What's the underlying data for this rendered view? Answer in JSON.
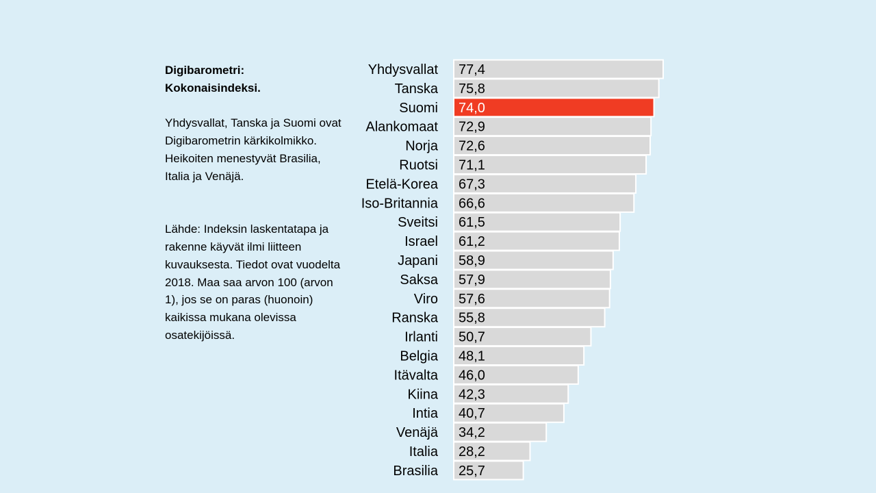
{
  "sidebar": {
    "title_line1": "Digibarometri:",
    "title_line2": "Kokonaisindeksi.",
    "summary": "Yhdysvallat, Tanska ja Suomi ovat Digibarometrin kärkikolmikko. Heikoiten menestyvät Brasilia, Italia ja Venäjä.",
    "source": "Lähde: Indeksin laskentatapa ja rakenne käyvät ilmi liitteen kuvauksesta. Tiedot ovat vuodelta 2018. Maa saa arvon 100 (arvon 1), jos se on paras (huonoin) kaikissa mukana olevissa osatekijöissä."
  },
  "chart_data": {
    "type": "bar",
    "orientation": "horizontal",
    "categories": [
      "Yhdysvallat",
      "Tanska",
      "Suomi",
      "Alankomaat",
      "Norja",
      "Ruotsi",
      "Etelä-Korea",
      "Iso-Britannia",
      "Sveitsi",
      "Israel",
      "Japani",
      "Saksa",
      "Viro",
      "Ranska",
      "Irlanti",
      "Belgia",
      "Itävalta",
      "Kiina",
      "Intia",
      "Venäjä",
      "Italia",
      "Brasilia"
    ],
    "values": [
      77.4,
      75.8,
      74.0,
      72.9,
      72.6,
      71.1,
      67.3,
      66.6,
      61.5,
      61.2,
      58.9,
      57.9,
      57.6,
      55.8,
      50.7,
      48.1,
      46.0,
      42.3,
      40.7,
      34.2,
      28.2,
      25.7
    ],
    "value_labels": [
      "77,4",
      "75,8",
      "74,0",
      "72,9",
      "72,6",
      "71,1",
      "67,3",
      "66,6",
      "61,5",
      "61,2",
      "58,9",
      "57,9",
      "57,6",
      "55,8",
      "50,7",
      "48,1",
      "46,0",
      "42,3",
      "40,7",
      "34,2",
      "28,2",
      "25,7"
    ],
    "highlight": "Suomi",
    "xlim": [
      0,
      77.4
    ],
    "grid": false,
    "colors": {
      "bar": "#d9d9d9",
      "bar_border": "#ffffff",
      "highlight": "#f03c23",
      "background": "#dbeef7"
    }
  }
}
